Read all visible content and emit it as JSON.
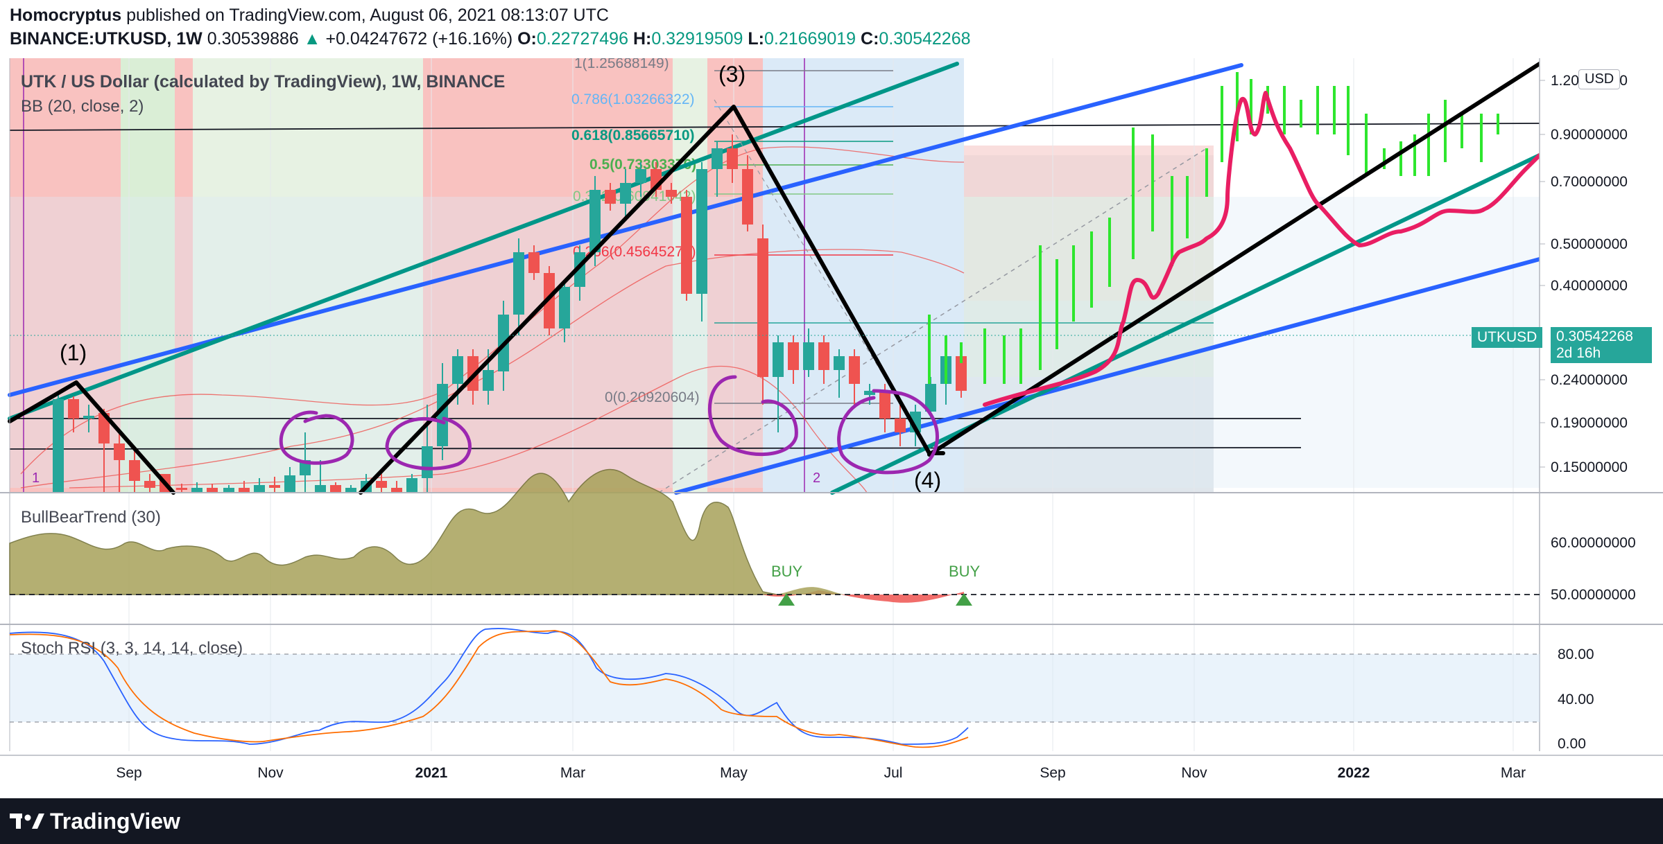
{
  "header": {
    "author": "Homocryptus",
    "published": "published on TradingView.com, August 06, 2021 08:13:07 UTC",
    "symbol": "BINANCE:UTKUSD, 1W",
    "last": "0.30539886",
    "change_arrow": "▲",
    "change": "+0.04247672 (+16.16%)",
    "o_label": "O:",
    "o": "0.22727496",
    "h_label": "H:",
    "h": "0.32919509",
    "l_label": "L:",
    "l": "0.21669019",
    "c_label": "C:",
    "c": "0.30542268"
  },
  "main_pane": {
    "title": "UTK / US Dollar (calculated by TradingView), 1W, BINANCE",
    "indicator": "BB (20, close, 2)",
    "currency_button": "USD",
    "price_badge_symbol": "UTKUSD",
    "price_badge_value": "0.30542268",
    "price_badge_time": "2d 16h",
    "y_ticks": [
      "1.20000000",
      "0.90000000",
      "0.70000000",
      "0.50000000",
      "0.40000000",
      "0.24000000",
      "0.19000000",
      "0.15000000"
    ],
    "fib_levels": [
      {
        "label": "1(1.25688149)",
        "color": "#787b86"
      },
      {
        "label": "0.786(1.03266322)",
        "color": "#64b5f6"
      },
      {
        "label": "0.618(0.85665710)",
        "color": "#089981"
      },
      {
        "label": "0.5(0.73303376)",
        "color": "#4caf50"
      },
      {
        "label": "0.382(0.60941042)",
        "color": "#81c784"
      },
      {
        "label": "0.236(0.45645270)",
        "color": "#f23645"
      },
      {
        "label": "0(0.20920604)",
        "color": "#787b86"
      }
    ],
    "wave_labels": [
      "(1)",
      "(3)",
      "(4)"
    ],
    "session_marks": [
      "1",
      "2"
    ]
  },
  "bullbear_pane": {
    "title": "BullBearTrend (30)",
    "y_ticks": [
      "60.00000000",
      "50.00000000"
    ],
    "signals": [
      "BUY",
      "BUY"
    ]
  },
  "stoch_pane": {
    "title": "Stoch RSI (3, 3, 14, 14, close)",
    "y_ticks": [
      "80.00",
      "40.00",
      "0.00"
    ]
  },
  "x_axis": {
    "ticks": [
      "Sep",
      "Nov",
      "2021",
      "Mar",
      "May",
      "Jul",
      "Sep",
      "Nov",
      "2022",
      "Mar"
    ]
  },
  "footer": {
    "brand": "TradingView"
  },
  "colors": {
    "up": "#26a69a",
    "down": "#ef5350",
    "projection": "#2ee62e",
    "channel_blue": "#2962ff",
    "channel_teal": "#009688",
    "annotation_pink": "#e91e63",
    "annotation_purple": "#9c27b0"
  }
}
